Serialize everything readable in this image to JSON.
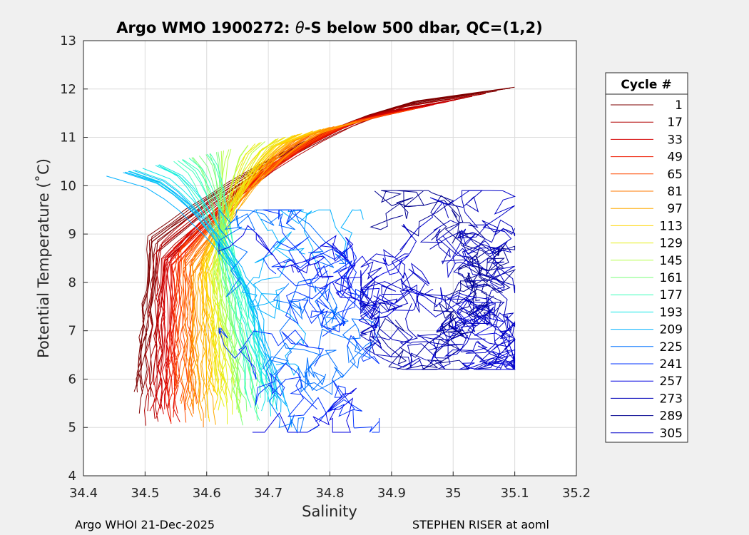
{
  "title_prefix": "Argo WMO 1900272: ",
  "title_theta": "θ",
  "title_suffix": "-S below 500 dbar,  QC=(1,2)",
  "footer": {
    "left": "Argo WHOI 21-Dec-2025",
    "right": "STEPHEN RISER at aoml"
  },
  "chart_data": {
    "type": "line",
    "xlabel": "Salinity",
    "ylabel": "Potential Temperature (˚C)",
    "xlim": [
      34.4,
      35.2
    ],
    "ylim": [
      4,
      13
    ],
    "xticks": [
      "34.4",
      "34.5",
      "34.6",
      "34.7",
      "34.8",
      "34.9",
      "35",
      "35.1",
      "35.2"
    ],
    "yticks": [
      "4",
      "5",
      "6",
      "7",
      "8",
      "9",
      "10",
      "11",
      "12",
      "13"
    ],
    "grid": true,
    "legend": {
      "title": "Cycle #",
      "placement": "outside-right",
      "entries": [
        {
          "label": "1",
          "color": "#7f0000"
        },
        {
          "label": "17",
          "color": "#b00000"
        },
        {
          "label": "33",
          "color": "#d40000"
        },
        {
          "label": "49",
          "color": "#ee1a00"
        },
        {
          "label": "65",
          "color": "#ff4a00"
        },
        {
          "label": "81",
          "color": "#ff7a00"
        },
        {
          "label": "97",
          "color": "#ffaa00"
        },
        {
          "label": "113",
          "color": "#ffd500"
        },
        {
          "label": "129",
          "color": "#e6f019"
        },
        {
          "label": "145",
          "color": "#b5ff4a"
        },
        {
          "label": "161",
          "color": "#7aff7a"
        },
        {
          "label": "177",
          "color": "#3dffbb"
        },
        {
          "label": "193",
          "color": "#15e6e6"
        },
        {
          "label": "209",
          "color": "#00b0ff"
        },
        {
          "label": "225",
          "color": "#0070ff"
        },
        {
          "label": "241",
          "color": "#0033ff"
        },
        {
          "label": "257",
          "color": "#0000e0"
        },
        {
          "label": "273",
          "color": "#0000b8"
        },
        {
          "label": "289",
          "color": "#00008f"
        },
        {
          "label": "305",
          "color": "#0000c8"
        }
      ]
    }
  }
}
